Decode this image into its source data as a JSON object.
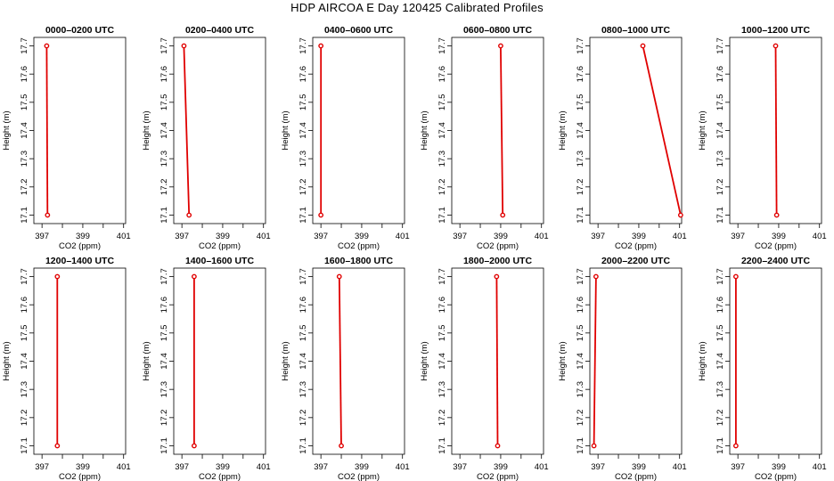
{
  "title": "HDP AIRCOA E  Day 120425  Calibrated Profiles",
  "series_color": "#e00000",
  "chart_data": [
    {
      "type": "line",
      "title": "0000–0200 UTC",
      "xlabel": "CO2 (ppm)",
      "ylabel": "Height (m)",
      "xlim": [
        396.6,
        401.1
      ],
      "ylim": [
        17.07,
        17.73
      ],
      "xticks": [
        "397",
        "399",
        "401"
      ],
      "yticks": [
        "17.1",
        "17.2",
        "17.3",
        "17.4",
        "17.5",
        "17.6",
        "17.7"
      ],
      "x": [
        397.23,
        397.27
      ],
      "y": [
        17.7,
        17.1
      ]
    },
    {
      "type": "line",
      "title": "0200–0400 UTC",
      "xlabel": "CO2 (ppm)",
      "ylabel": "Height (m)",
      "xlim": [
        396.6,
        401.1
      ],
      "ylim": [
        17.07,
        17.73
      ],
      "xticks": [
        "397",
        "399",
        "401"
      ],
      "yticks": [
        "17.1",
        "17.2",
        "17.3",
        "17.4",
        "17.5",
        "17.6",
        "17.7"
      ],
      "x": [
        397.1,
        397.35
      ],
      "y": [
        17.7,
        17.1
      ]
    },
    {
      "type": "line",
      "title": "0400–0600 UTC",
      "xlabel": "CO2 (ppm)",
      "ylabel": "Height (m)",
      "xlim": [
        396.6,
        401.1
      ],
      "ylim": [
        17.07,
        17.73
      ],
      "xticks": [
        "397",
        "399",
        "401"
      ],
      "yticks": [
        "17.1",
        "17.2",
        "17.3",
        "17.4",
        "17.5",
        "17.6",
        "17.7"
      ],
      "x": [
        397.0,
        397.0
      ],
      "y": [
        17.7,
        17.1
      ]
    },
    {
      "type": "line",
      "title": "0600–0800 UTC",
      "xlabel": "CO2 (ppm)",
      "ylabel": "Height (m)",
      "xlim": [
        396.6,
        401.1
      ],
      "ylim": [
        17.07,
        17.73
      ],
      "xticks": [
        "397",
        "399",
        "401"
      ],
      "yticks": [
        "17.1",
        "17.2",
        "17.3",
        "17.4",
        "17.5",
        "17.6",
        "17.7"
      ],
      "x": [
        399.0,
        399.1
      ],
      "y": [
        17.7,
        17.1
      ]
    },
    {
      "type": "line",
      "title": "0800–1000 UTC",
      "xlabel": "CO2 (ppm)",
      "ylabel": "Height (m)",
      "xlim": [
        396.6,
        401.1
      ],
      "ylim": [
        17.07,
        17.73
      ],
      "xticks": [
        "397",
        "399",
        "401"
      ],
      "yticks": [
        "17.1",
        "17.2",
        "17.3",
        "17.4",
        "17.5",
        "17.6",
        "17.7"
      ],
      "x": [
        399.2,
        401.05
      ],
      "y": [
        17.7,
        17.1
      ]
    },
    {
      "type": "line",
      "title": "1000–1200 UTC",
      "xlabel": "CO2 (ppm)",
      "ylabel": "Height (m)",
      "xlim": [
        396.6,
        401.1
      ],
      "ylim": [
        17.07,
        17.73
      ],
      "xticks": [
        "397",
        "399",
        "401"
      ],
      "yticks": [
        "17.1",
        "17.2",
        "17.3",
        "17.4",
        "17.5",
        "17.6",
        "17.7"
      ],
      "x": [
        398.85,
        398.9
      ],
      "y": [
        17.7,
        17.1
      ]
    },
    {
      "type": "line",
      "title": "1200–1400 UTC",
      "xlabel": "CO2 (ppm)",
      "ylabel": "Height (m)",
      "xlim": [
        396.6,
        401.1
      ],
      "ylim": [
        17.07,
        17.73
      ],
      "xticks": [
        "397",
        "399",
        "401"
      ],
      "yticks": [
        "17.1",
        "17.2",
        "17.3",
        "17.4",
        "17.5",
        "17.6",
        "17.7"
      ],
      "x": [
        397.75,
        397.75
      ],
      "y": [
        17.7,
        17.1
      ]
    },
    {
      "type": "line",
      "title": "1400–1600 UTC",
      "xlabel": "CO2 (ppm)",
      "ylabel": "Height (m)",
      "xlim": [
        396.6,
        401.1
      ],
      "ylim": [
        17.07,
        17.73
      ],
      "xticks": [
        "397",
        "399",
        "401"
      ],
      "yticks": [
        "17.1",
        "17.2",
        "17.3",
        "17.4",
        "17.5",
        "17.6",
        "17.7"
      ],
      "x": [
        397.6,
        397.6
      ],
      "y": [
        17.7,
        17.1
      ]
    },
    {
      "type": "line",
      "title": "1600–1800 UTC",
      "xlabel": "CO2 (ppm)",
      "ylabel": "Height (m)",
      "xlim": [
        396.6,
        401.1
      ],
      "ylim": [
        17.07,
        17.73
      ],
      "xticks": [
        "397",
        "399",
        "401"
      ],
      "yticks": [
        "17.1",
        "17.2",
        "17.3",
        "17.4",
        "17.5",
        "17.6",
        "17.7"
      ],
      "x": [
        397.9,
        398.0
      ],
      "y": [
        17.7,
        17.1
      ]
    },
    {
      "type": "line",
      "title": "1800–2000 UTC",
      "xlabel": "CO2 (ppm)",
      "ylabel": "Height (m)",
      "xlim": [
        396.6,
        401.1
      ],
      "ylim": [
        17.07,
        17.73
      ],
      "xticks": [
        "397",
        "399",
        "401"
      ],
      "yticks": [
        "17.1",
        "17.2",
        "17.3",
        "17.4",
        "17.5",
        "17.6",
        "17.7"
      ],
      "x": [
        398.8,
        398.85
      ],
      "y": [
        17.7,
        17.1
      ]
    },
    {
      "type": "line",
      "title": "2000–2200 UTC",
      "xlabel": "CO2 (ppm)",
      "ylabel": "Height (m)",
      "xlim": [
        396.6,
        401.1
      ],
      "ylim": [
        17.07,
        17.73
      ],
      "xticks": [
        "397",
        "399",
        "401"
      ],
      "yticks": [
        "17.1",
        "17.2",
        "17.3",
        "17.4",
        "17.5",
        "17.6",
        "17.7"
      ],
      "x": [
        396.9,
        396.8
      ],
      "y": [
        17.7,
        17.1
      ]
    },
    {
      "type": "line",
      "title": "2200–2400 UTC",
      "xlabel": "CO2 (ppm)",
      "ylabel": "Height (m)",
      "xlim": [
        396.6,
        401.1
      ],
      "ylim": [
        17.07,
        17.73
      ],
      "xticks": [
        "397",
        "399",
        "401"
      ],
      "yticks": [
        "17.1",
        "17.2",
        "17.3",
        "17.4",
        "17.5",
        "17.6",
        "17.7"
      ],
      "x": [
        396.9,
        396.9
      ],
      "y": [
        17.7,
        17.1
      ]
    }
  ]
}
